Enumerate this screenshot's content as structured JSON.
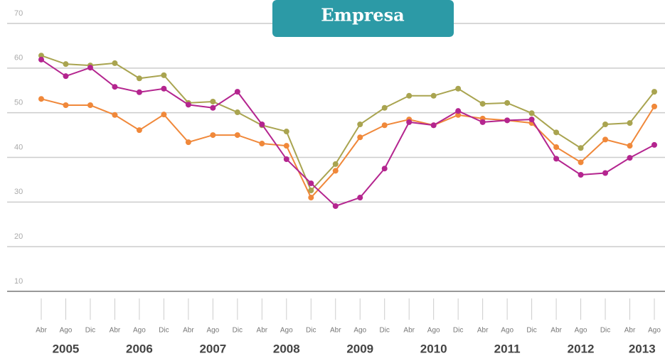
{
  "chart_data": {
    "type": "line",
    "title": "Empresa",
    "categories": [
      "Abr",
      "Ago",
      "Dic",
      "Abr",
      "Ago",
      "Dic",
      "Abr",
      "Ago",
      "Dic",
      "Abr",
      "Ago",
      "Dic",
      "Abr",
      "Ago",
      "Dic",
      "Abr",
      "Ago",
      "Dic",
      "Abr",
      "Ago",
      "Dic",
      "Abr",
      "Ago",
      "Dic",
      "Abr",
      "Ago"
    ],
    "years": [
      "2005",
      "2006",
      "2007",
      "2008",
      "2009",
      "2010",
      "2011",
      "2012",
      "2013"
    ],
    "ylim": [
      10,
      70
    ],
    "yticks": [
      10,
      20,
      30,
      40,
      50,
      60,
      70
    ],
    "grid": true,
    "series": [
      {
        "color": "#a9a450",
        "values": [
          62.8,
          60.9,
          60.6,
          61.1,
          57.7,
          58.4,
          52.2,
          52.5,
          50.1,
          47.2,
          45.8,
          32.6,
          38.5,
          47.4,
          51.1,
          53.8,
          53.8,
          55.4,
          52.0,
          52.2,
          49.9,
          45.6,
          42.1,
          47.4,
          47.7,
          54.7
        ]
      },
      {
        "color": "#f0883a",
        "values": [
          53.1,
          51.7,
          51.7,
          49.5,
          46.1,
          49.6,
          43.4,
          45.0,
          45.0,
          43.1,
          42.6,
          31.0,
          37.0,
          44.5,
          47.2,
          48.5,
          47.2,
          49.5,
          48.7,
          48.3,
          47.7,
          42.3,
          38.9,
          44.0,
          42.6,
          51.4
        ]
      },
      {
        "color": "#b4258f",
        "values": [
          61.9,
          58.2,
          60.1,
          55.8,
          54.6,
          55.4,
          51.8,
          51.1,
          54.7,
          47.4,
          39.6,
          34.2,
          29.1,
          31.0,
          37.5,
          47.9,
          47.2,
          50.4,
          47.9,
          48.3,
          48.5,
          39.7,
          36.1,
          36.5,
          39.9,
          42.8
        ]
      }
    ]
  }
}
